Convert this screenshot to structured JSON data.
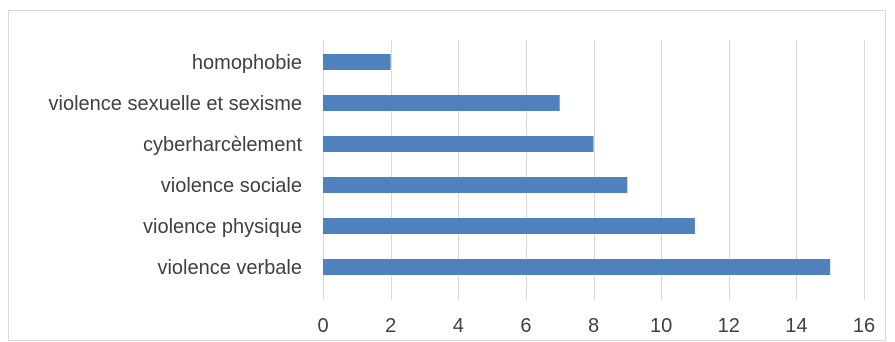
{
  "chart_data": {
    "type": "bar",
    "orientation": "horizontal",
    "categories": [
      "homophobie",
      "violence sexuelle et sexisme",
      "cyberharcèlement",
      "violence sociale",
      "violence physique",
      "violence verbale"
    ],
    "values": [
      2,
      7,
      8,
      9,
      11,
      15
    ],
    "xlim": [
      0,
      16
    ],
    "xticks": [
      0,
      2,
      4,
      6,
      8,
      10,
      12,
      14,
      16
    ],
    "title": "",
    "xlabel": "",
    "ylabel": "",
    "grid": "vertical",
    "legend": "none",
    "colors": {
      "bar": "#4F81BD",
      "grid": "#D9D9D9",
      "border": "#D9D9D9",
      "text": "#404040"
    }
  }
}
